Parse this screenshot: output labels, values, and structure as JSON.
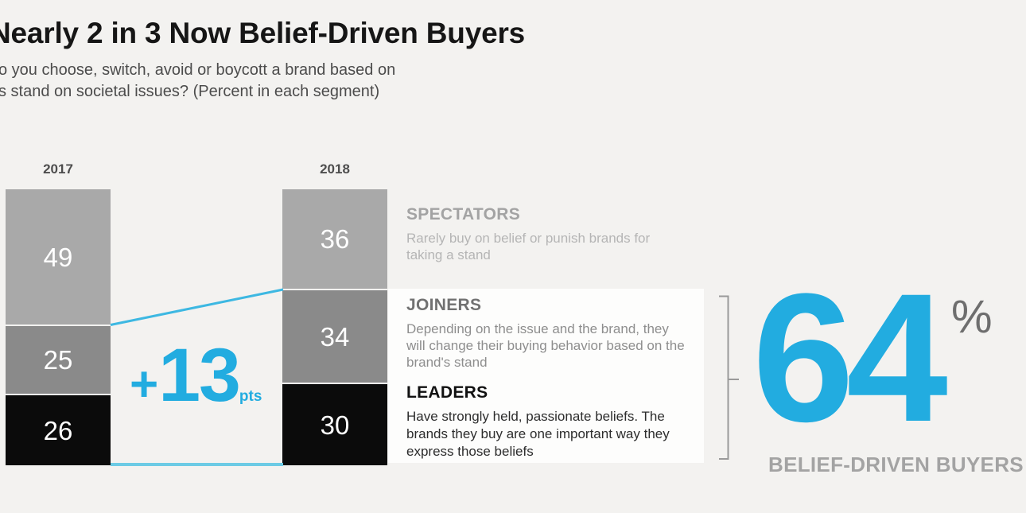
{
  "title": "Nearly 2 in 3 Now Belief-Driven Buyers",
  "question_line1": "o you choose, switch, avoid or boycott a brand based on",
  "question_line2": "s stand on societal issues? (Percent in each segment)",
  "colors": {
    "accent_blue": "#22ace0",
    "connector_line": "#3db8e2",
    "connector_line_light": "#6ccbe5",
    "segment_spectators": "#a9a9a9",
    "segment_joiners": "#8a8a8a",
    "segment_leaders": "#0b0b0b",
    "background": "#f3f2f0",
    "panel_white": "#fdfdfc"
  },
  "chart_data": {
    "type": "bar",
    "stacked": true,
    "categories": [
      "2017",
      "2018"
    ],
    "series": [
      {
        "name": "SPECTATORS",
        "color": "#a9a9a9",
        "values": [
          49,
          36
        ]
      },
      {
        "name": "JOINERS",
        "color": "#8a8a8a",
        "values": [
          25,
          34
        ]
      },
      {
        "name": "LEADERS",
        "color": "#0b0b0b",
        "values": [
          26,
          30
        ]
      }
    ],
    "value_format": "percent in each segment",
    "legend_position": "right"
  },
  "change": {
    "plus": "+",
    "value": "13",
    "unit": "pts"
  },
  "legend": [
    {
      "name": "SPECTATORS",
      "description": "Rarely buy on belief or punish brands for taking a stand"
    },
    {
      "name": "JOINERS",
      "description": "Depending on the issue and the brand, they will change their buying behavior based on the brand's stand"
    },
    {
      "name": "LEADERS",
      "description": "Have strongly held, passionate beliefs. The brands they buy are one important way they express those beliefs"
    }
  ],
  "summary": {
    "value": "64",
    "percent_sign": "%",
    "label": "BELIEF-DRIVEN BUYERS"
  }
}
